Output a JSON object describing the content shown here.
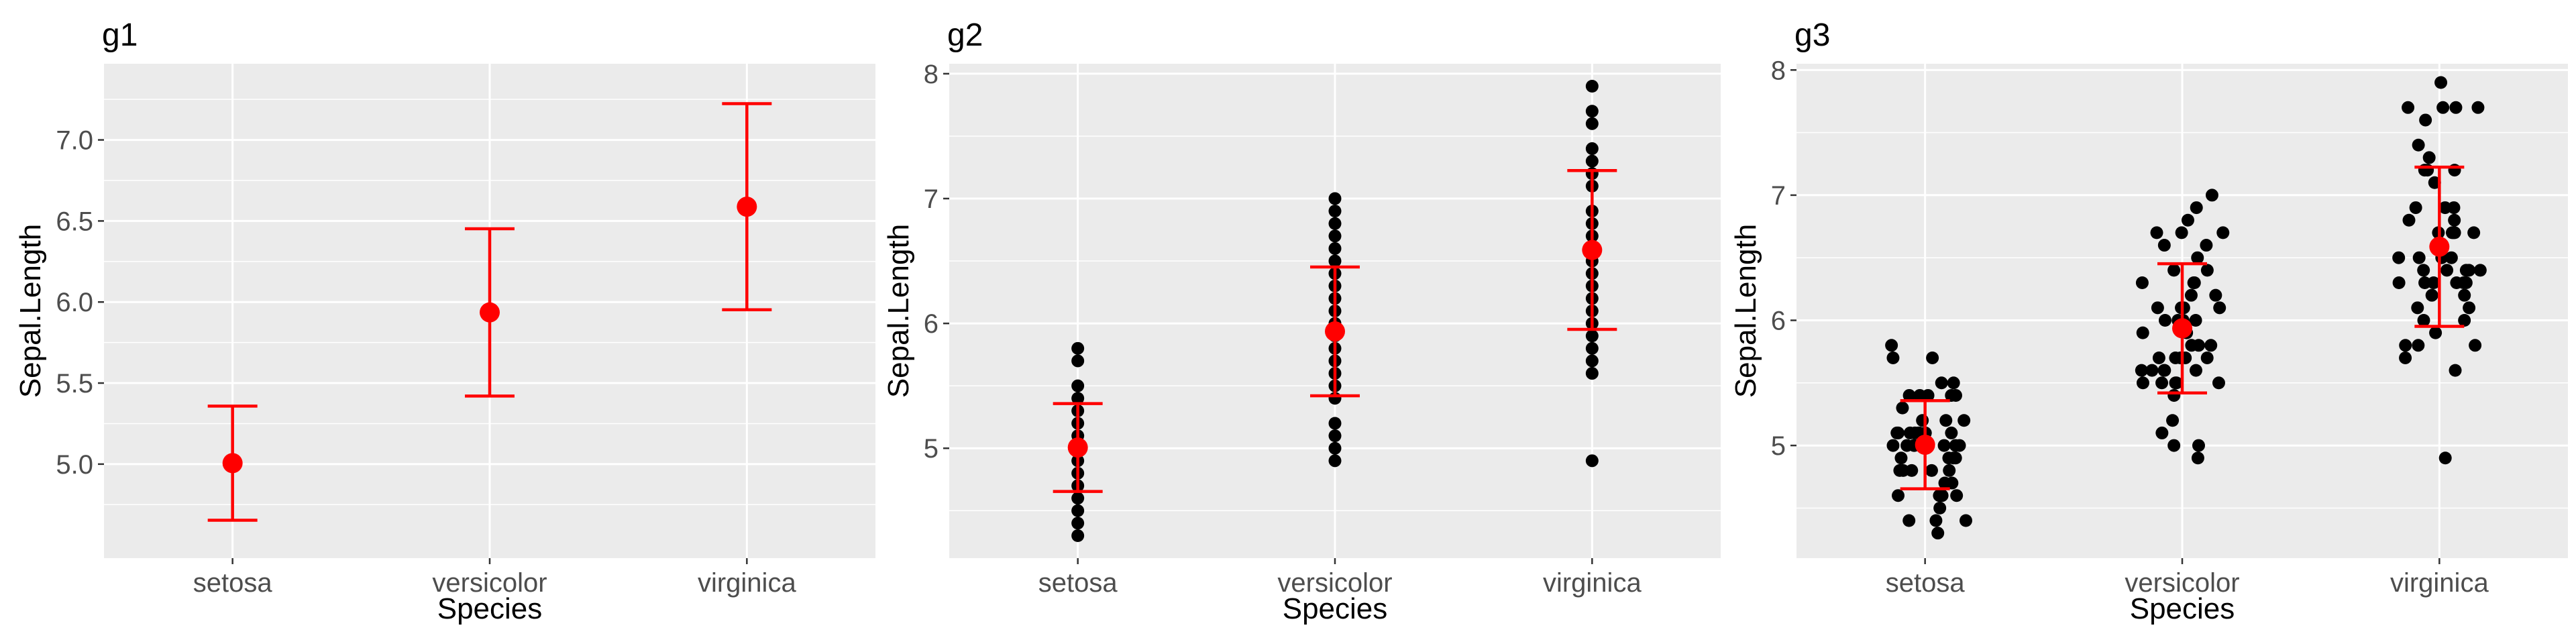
{
  "chart_data": [
    {
      "type": "scatter",
      "title": "g1",
      "xlabel": "Species",
      "ylabel": "Sepal.Length",
      "categories": [
        "setosa",
        "versicolor",
        "virginica"
      ],
      "ylim": [
        4.42,
        7.47
      ],
      "yticks": [
        5.0,
        5.5,
        6.0,
        6.5,
        7.0
      ],
      "ytick_labels": [
        "5.0",
        "5.5",
        "6.0",
        "6.5",
        "7.0"
      ],
      "grid": true,
      "show_points": false,
      "summary": {
        "mean": [
          5.006,
          5.936,
          6.588
        ],
        "lower": [
          4.654,
          5.42,
          5.952
        ],
        "upper": [
          5.358,
          6.452,
          7.224
        ],
        "color": "#ff0000"
      }
    },
    {
      "type": "scatter",
      "title": "g2",
      "xlabel": "Species",
      "ylabel": "Sepal.Length",
      "categories": [
        "setosa",
        "versicolor",
        "virginica"
      ],
      "ylim": [
        4.12,
        8.08
      ],
      "yticks": [
        5,
        6,
        7,
        8
      ],
      "ytick_labels": [
        "5",
        "6",
        "7",
        "8"
      ],
      "grid": true,
      "jitter": false,
      "points": [
        [
          4.3,
          4.4,
          4.5,
          4.6,
          4.7,
          4.8,
          4.9,
          5.0,
          5.1,
          5.2,
          5.3,
          5.4,
          5.5,
          5.7,
          5.8
        ],
        [
          4.9,
          5.0,
          5.1,
          5.2,
          5.4,
          5.5,
          5.6,
          5.7,
          5.8,
          5.9,
          6.0,
          6.1,
          6.2,
          6.3,
          6.4,
          6.5,
          6.6,
          6.7,
          6.8,
          6.9,
          7.0
        ],
        [
          4.9,
          5.6,
          5.7,
          5.8,
          5.9,
          6.0,
          6.1,
          6.2,
          6.3,
          6.4,
          6.5,
          6.7,
          6.8,
          6.9,
          7.1,
          7.2,
          7.3,
          7.4,
          7.6,
          7.7,
          7.9
        ]
      ],
      "point_color": "#000000",
      "summary": {
        "mean": [
          5.006,
          5.936,
          6.588
        ],
        "lower": [
          4.654,
          5.42,
          5.952
        ],
        "upper": [
          5.358,
          6.452,
          7.224
        ],
        "color": "#ff0000"
      }
    },
    {
      "type": "scatter",
      "title": "g3",
      "xlabel": "Species",
      "ylabel": "Sepal.Length",
      "categories": [
        "setosa",
        "versicolor",
        "virginica"
      ],
      "ylim": [
        4.1,
        8.05
      ],
      "yticks": [
        5,
        6,
        7,
        8
      ],
      "ytick_labels": [
        "5",
        "6",
        "7",
        "8"
      ],
      "grid": true,
      "jitter": true,
      "points": [
        [
          4.3,
          4.4,
          4.4,
          4.4,
          4.5,
          4.6,
          4.6,
          4.6,
          4.6,
          4.7,
          4.7,
          4.8,
          4.8,
          4.8,
          4.8,
          4.8,
          4.9,
          4.9,
          4.9,
          4.9,
          5.0,
          5.0,
          5.0,
          5.0,
          5.0,
          5.0,
          5.0,
          5.0,
          5.1,
          5.1,
          5.1,
          5.1,
          5.1,
          5.1,
          5.1,
          5.1,
          5.2,
          5.2,
          5.2,
          5.3,
          5.4,
          5.4,
          5.4,
          5.4,
          5.4,
          5.5,
          5.5,
          5.7,
          5.7,
          5.8
        ],
        [
          4.9,
          5.0,
          5.0,
          5.1,
          5.2,
          5.4,
          5.5,
          5.5,
          5.5,
          5.5,
          5.5,
          5.6,
          5.6,
          5.6,
          5.6,
          5.6,
          5.7,
          5.7,
          5.7,
          5.7,
          5.7,
          5.8,
          5.8,
          5.8,
          5.9,
          5.9,
          6.0,
          6.0,
          6.0,
          6.0,
          6.1,
          6.1,
          6.1,
          6.1,
          6.2,
          6.2,
          6.3,
          6.3,
          6.3,
          6.4,
          6.4,
          6.5,
          6.6,
          6.6,
          6.7,
          6.7,
          6.7,
          6.8,
          6.9,
          7.0
        ],
        [
          4.9,
          5.6,
          5.7,
          5.8,
          5.8,
          5.8,
          5.9,
          6.0,
          6.0,
          6.1,
          6.1,
          6.2,
          6.2,
          6.3,
          6.3,
          6.3,
          6.3,
          6.3,
          6.3,
          6.4,
          6.4,
          6.4,
          6.4,
          6.5,
          6.5,
          6.5,
          6.5,
          6.7,
          6.7,
          6.7,
          6.7,
          6.7,
          6.8,
          6.8,
          6.9,
          6.9,
          6.9,
          7.1,
          7.2,
          7.2,
          7.2,
          7.3,
          7.4,
          7.6,
          7.7,
          7.7,
          7.7,
          7.7,
          7.9,
          6.4
        ]
      ],
      "point_color": "#000000",
      "summary": {
        "mean": [
          5.006,
          5.936,
          6.588
        ],
        "lower": [
          4.654,
          5.42,
          5.952
        ],
        "upper": [
          5.358,
          6.452,
          7.224
        ],
        "color": "#ff0000"
      }
    }
  ]
}
